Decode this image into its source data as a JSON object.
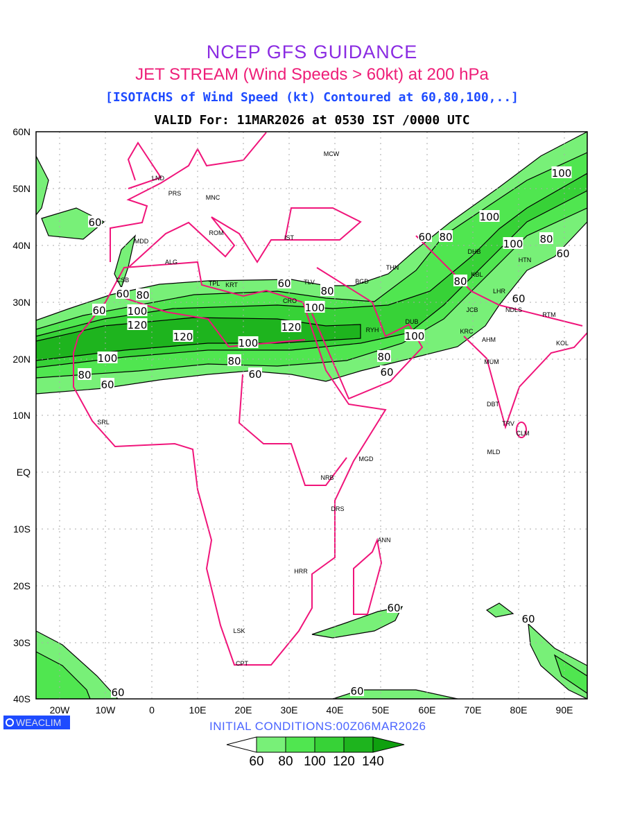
{
  "title": {
    "line1": "NCEP GFS GUIDANCE",
    "line2": "JET STREAM (Wind Speeds > 60kt) at 200 hPa",
    "line3": "[ISOTACHS of Wind Speed (kt) Contoured at 60,80,100,..]",
    "line4": "VALID For: 11MAR2026 at 0530 IST /0000 UTC"
  },
  "axes": {
    "lat_ticks": [
      "60N",
      "50N",
      "40N",
      "30N",
      "20N",
      "10N",
      "EQ",
      "10S",
      "20S",
      "30S",
      "40S"
    ],
    "lon_ticks": [
      "20W",
      "10W",
      "0",
      "10E",
      "20E",
      "30E",
      "40E",
      "50E",
      "60E",
      "70E",
      "80E",
      "90E"
    ]
  },
  "cities": [
    "MCW",
    "LND",
    "PRS",
    "MNC",
    "ROM",
    "IST",
    "MDD",
    "ALG",
    "CSB",
    "TPL",
    "KRT",
    "TLV",
    "CRO",
    "BGD",
    "THN",
    "DHB",
    "KBL",
    "HTN",
    "LHR",
    "NDLS",
    "JCB",
    "RYH",
    "DUB",
    "KRC",
    "AHM",
    "RTM",
    "KOL",
    "MUM",
    "DBT",
    "TRV",
    "CLM",
    "MLD",
    "MGD",
    "NRB",
    "DRS",
    "ANN",
    "HRR",
    "LSK",
    "CPT",
    "SRL"
  ],
  "contour_labels": [
    "60",
    "60",
    "80",
    "100",
    "100",
    "100",
    "80",
    "60",
    "60",
    "60",
    "80",
    "80",
    "80",
    "100",
    "60",
    "60",
    "100",
    "120",
    "120",
    "120",
    "100",
    "100",
    "100",
    "80",
    "80",
    "60",
    "60",
    "80",
    "60",
    "60",
    "60",
    "60",
    "60"
  ],
  "logo": "WEACLIM",
  "initial_conditions": "INITIAL  CONDITIONS:00Z06MAR2026",
  "colorbar": {
    "labels": [
      "60",
      "80",
      "100",
      "120",
      "140"
    ],
    "colors": [
      "#ffffff",
      "#78f078",
      "#50e650",
      "#37d237",
      "#1eb41e",
      "#0fa00f"
    ]
  },
  "colors": {
    "coast": "#f0147a",
    "title1": "#8a2be2",
    "title2": "#ee1e78",
    "title3": "#1e4bff"
  }
}
